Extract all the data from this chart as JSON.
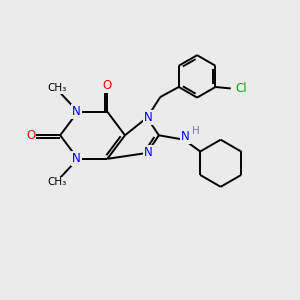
{
  "bg_color": "#ebebeb",
  "atom_colors": {
    "N": "#0000ff",
    "O": "#ff0000",
    "C": "#000000",
    "Cl": "#00aa00",
    "H": "#708090"
  },
  "bond_lw": 1.4,
  "font_size": 8.5,
  "fig_size": [
    3.0,
    3.0
  ],
  "dpi": 100
}
